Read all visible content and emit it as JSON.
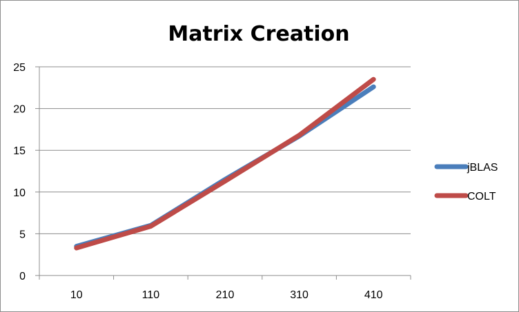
{
  "chart_data": {
    "type": "line",
    "title": "Matrix Creation",
    "xlabel": "",
    "ylabel": "",
    "categories": [
      "10",
      "110",
      "210",
      "310",
      "410"
    ],
    "ylim": [
      0,
      25
    ],
    "yticks": [
      0,
      5,
      10,
      15,
      20,
      25
    ],
    "grid": "horizontal",
    "legend_position": "right",
    "series": [
      {
        "name": "jBLAS",
        "color": "#4a7ebb",
        "values": [
          3.5,
          6.0,
          11.5,
          16.7,
          22.6
        ]
      },
      {
        "name": "COLT",
        "color": "#be4b48",
        "values": [
          3.3,
          5.9,
          11.3,
          16.8,
          23.5
        ]
      }
    ]
  }
}
